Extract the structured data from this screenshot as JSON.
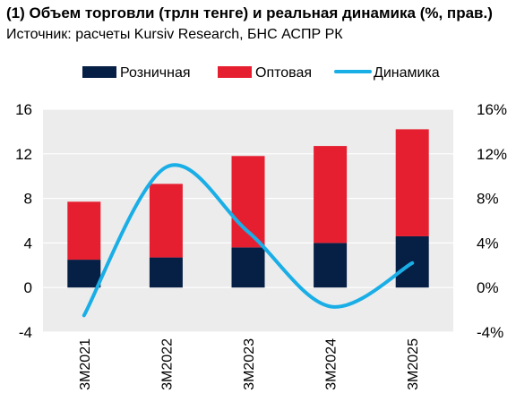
{
  "title": "(1) Объем торговли (трлн тенге) и реальная динамика (%, прав.)",
  "subtitle": "Источник: расчеты Kursiv Research, БНС АСПР РК",
  "colors": {
    "retail": "#061f45",
    "wholesale": "#e61f30",
    "dynamics": "#1aaee6",
    "plot_bg": "#ececec",
    "grid": "#ffffff"
  },
  "chart_data": {
    "type": "bar",
    "stacked": true,
    "categories": [
      "3М2021",
      "3М2022",
      "3М2023",
      "3М2024",
      "3М2025"
    ],
    "series": [
      {
        "name": "Розничная",
        "type": "bar",
        "axis": "left",
        "values": [
          2.5,
          2.7,
          3.6,
          4.0,
          4.6
        ]
      },
      {
        "name": "Оптовая",
        "type": "bar",
        "axis": "left",
        "values": [
          5.2,
          6.6,
          8.2,
          8.7,
          9.6
        ]
      },
      {
        "name": "Динамика",
        "type": "line",
        "smooth": true,
        "axis": "right",
        "values": [
          -2.5,
          10.8,
          5.0,
          -1.7,
          2.2
        ]
      }
    ],
    "ylim": [
      -4,
      16
    ],
    "yticks": [
      "-4",
      "0",
      "4",
      "8",
      "12",
      "16"
    ],
    "y2lim": [
      -4,
      16
    ],
    "y2ticks": [
      "-4%",
      "0%",
      "4%",
      "8%",
      "12%",
      "16%"
    ],
    "legend_position": "top",
    "grid": true
  }
}
